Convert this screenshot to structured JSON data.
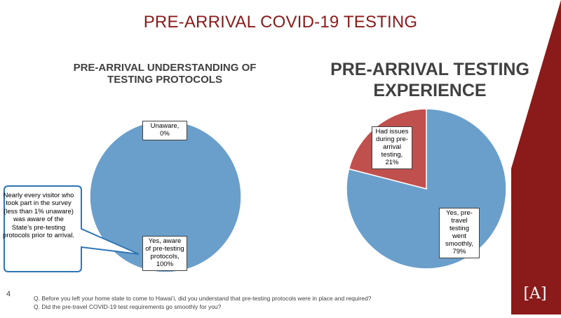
{
  "slide": {
    "title": "PRE-ARRIVAL COVID-19 TESTING",
    "page_number": "4",
    "questions": [
      "Q.  Before you left your home state to come to Hawai‘i, did you understand that pre-testing protocols were in place and required?",
      "Q.  Did the pre-travel COVID-19 test requirements go smoothly for you?"
    ],
    "callout": "Nearly every visitor who took part in the survey (less than 1% unaware) was aware of the State’s pre-testing protocols prior to arrival.",
    "logo_text": "[A]",
    "colors": {
      "title": "#8b1a1a",
      "brand": "#8b1a1a",
      "blue": "#6a9fcb",
      "red": "#c0504d",
      "callout_border": "#2e75b6"
    }
  },
  "chart_data": [
    {
      "type": "pie",
      "title": "PRE-ARRIVAL UNDERSTANDING OF TESTING PROTOCOLS",
      "slices": [
        {
          "label": "Unaware, 0%",
          "value": 0,
          "color": "#6a9fcb"
        },
        {
          "label": "Yes, aware of pre-testing protocols, 100%",
          "value": 100,
          "color": "#6a9fcb"
        }
      ]
    },
    {
      "type": "pie",
      "title": "PRE-ARRIVAL TESTING EXPERIENCE",
      "slices": [
        {
          "label": "Yes, pre-travel testing went smoothly, 79%",
          "value": 79,
          "color": "#6a9fcb"
        },
        {
          "label": "Had issues during pre-arrival testing, 21%",
          "value": 21,
          "color": "#c0504d"
        }
      ]
    }
  ]
}
